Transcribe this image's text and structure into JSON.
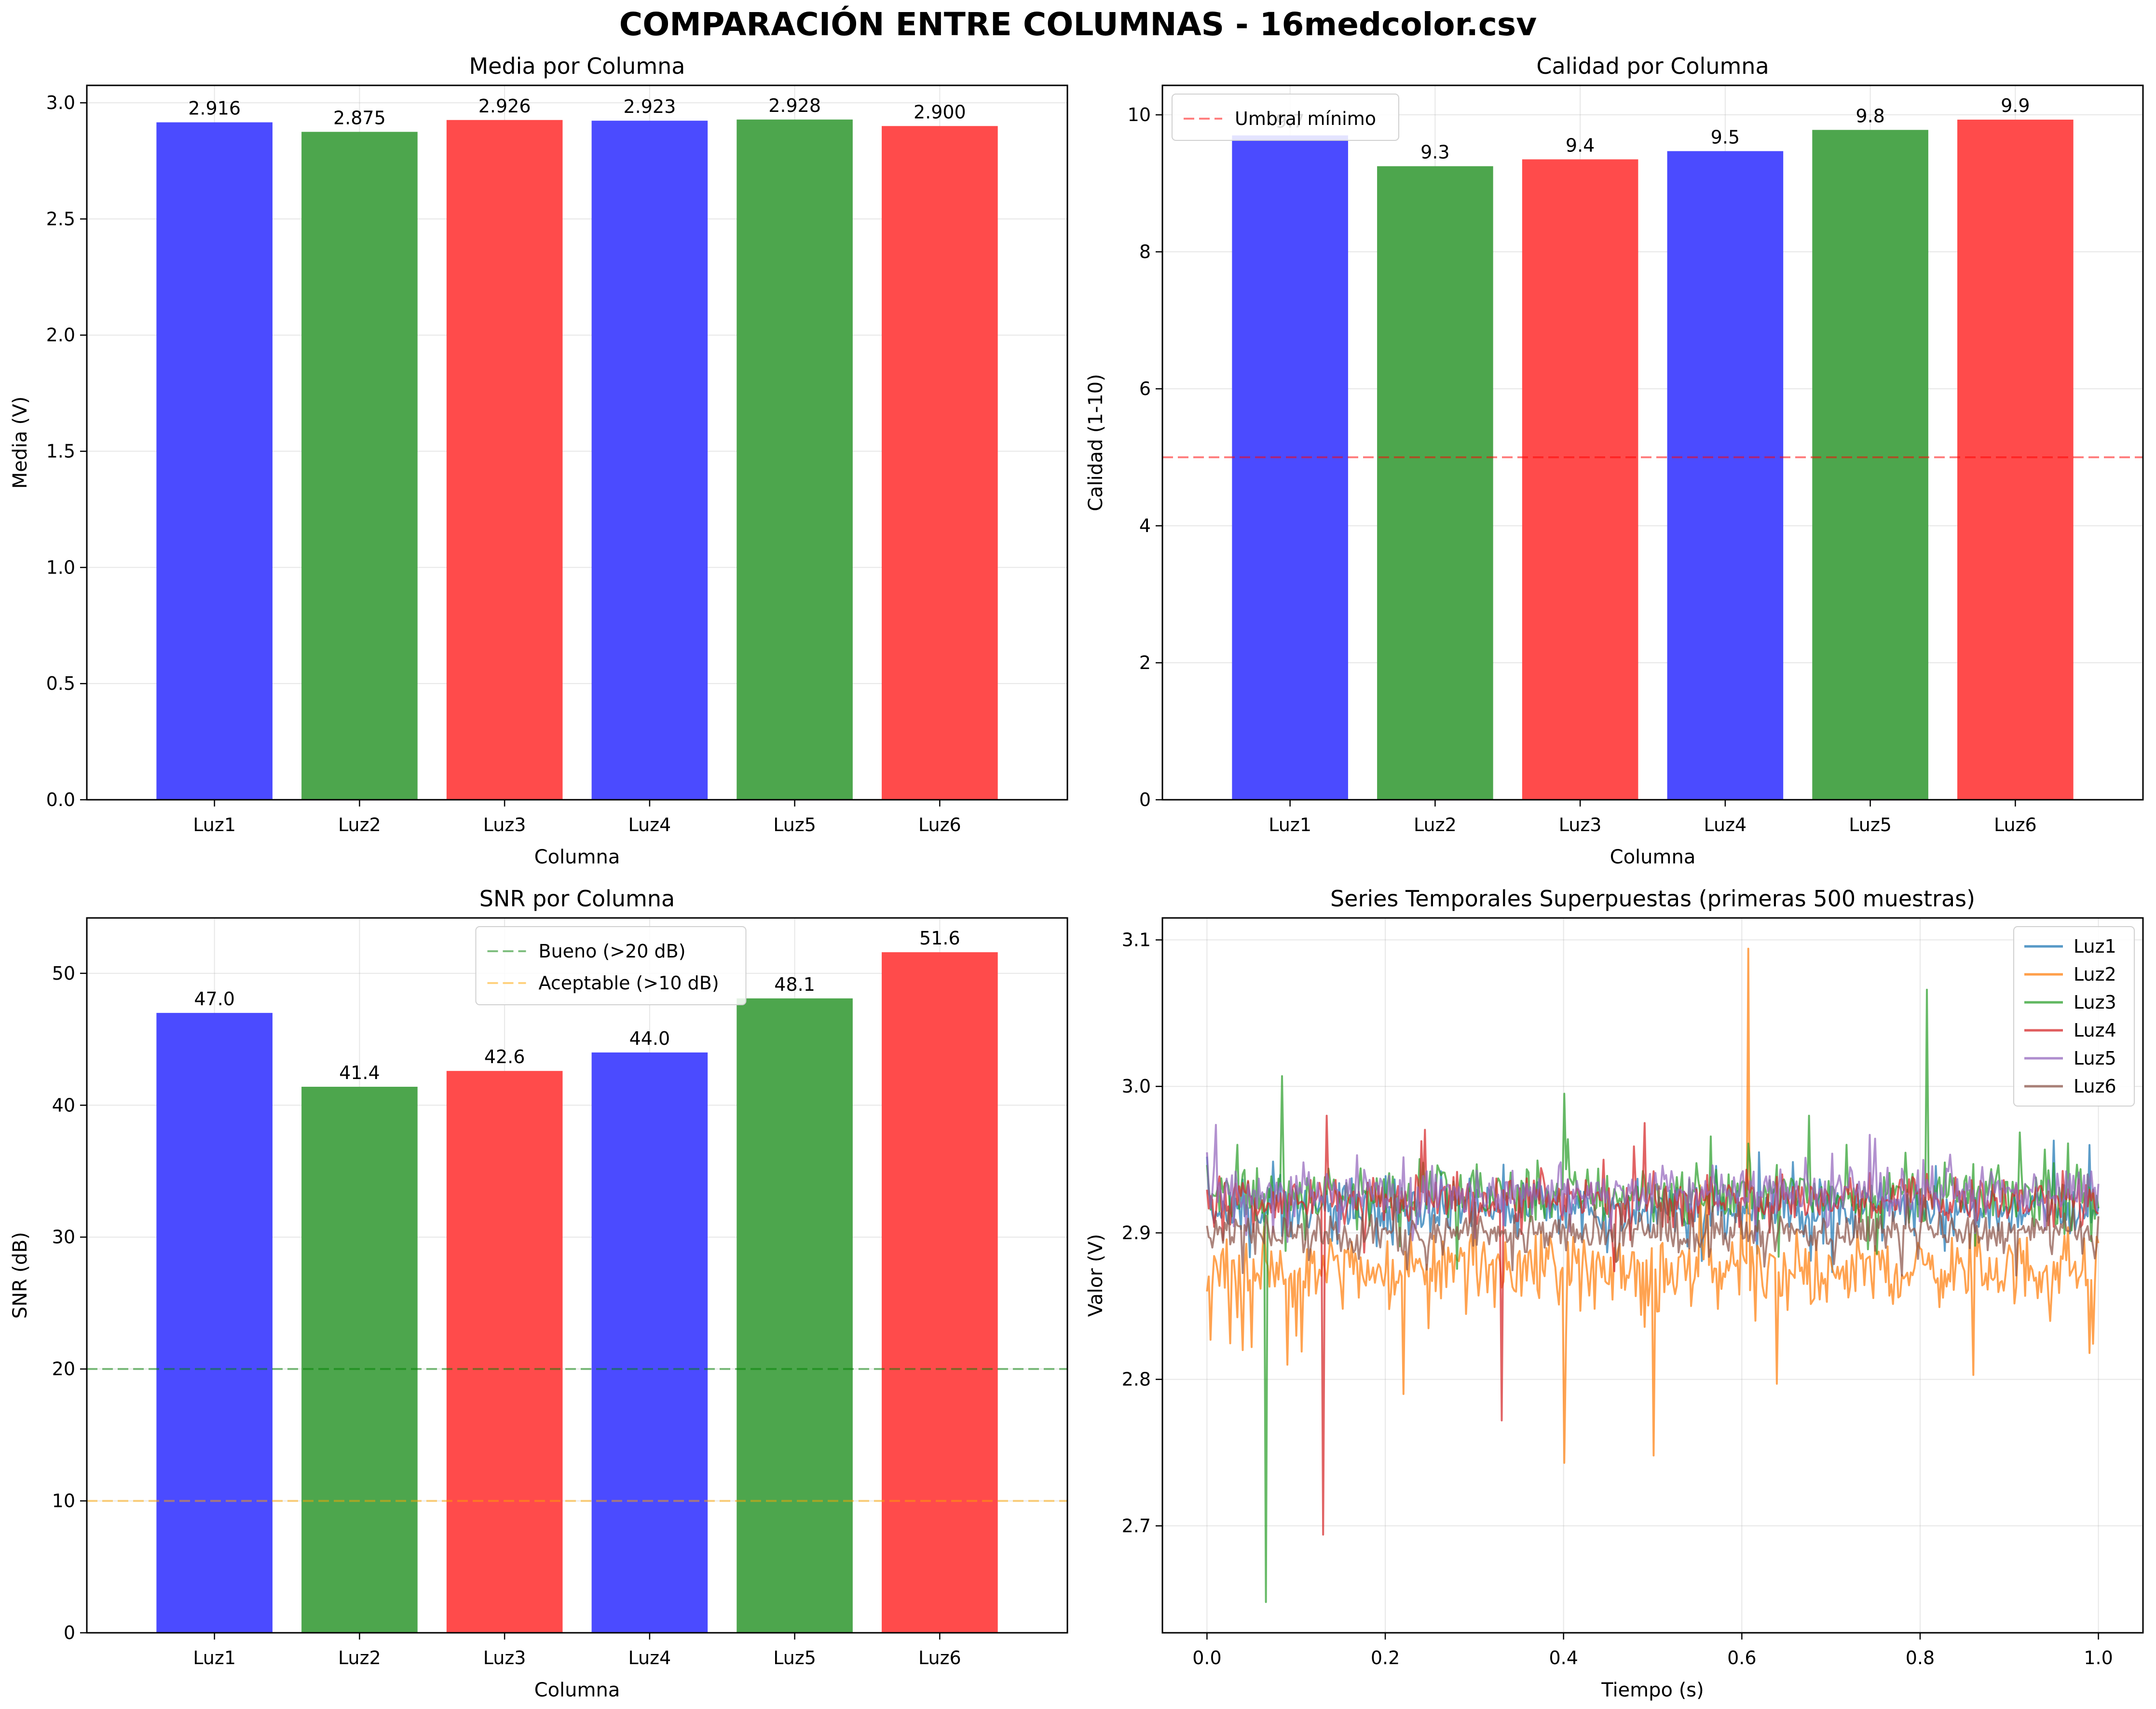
{
  "suptitle": "COMPARACIÓN ENTRE COLUMNAS - 16medcolor.csv",
  "chart_data": [
    {
      "type": "bar",
      "title": "Media por Columna",
      "xlabel": "Columna",
      "ylabel": "Media (V)",
      "categories": [
        "Luz1",
        "Luz2",
        "Luz3",
        "Luz4",
        "Luz5",
        "Luz6"
      ],
      "values": [
        2.916,
        2.875,
        2.926,
        2.923,
        2.928,
        2.9
      ],
      "value_labels": [
        "2.916",
        "2.875",
        "2.926",
        "2.923",
        "2.928",
        "2.900"
      ],
      "colors": [
        "#4b4bff",
        "#4da64d",
        "#ff4b4b",
        "#4b4bff",
        "#4da64d",
        "#ff4b4b"
      ],
      "ylim": [
        0,
        3.075
      ],
      "yticks": [
        0.0,
        0.5,
        1.0,
        1.5,
        2.0,
        2.5,
        3.0
      ],
      "ytick_labels": [
        "0.0",
        "0.5",
        "1.0",
        "1.5",
        "2.0",
        "2.5",
        "3.0"
      ],
      "grid": true
    },
    {
      "type": "bar",
      "title": "Calidad por Columna",
      "xlabel": "Columna",
      "ylabel": "Calidad (1-10)",
      "categories": [
        "Luz1",
        "Luz2",
        "Luz3",
        "Luz4",
        "Luz5",
        "Luz6"
      ],
      "values": [
        9.7,
        9.25,
        9.35,
        9.47,
        9.78,
        9.93
      ],
      "value_labels": [
        "9.7",
        "9.3",
        "9.4",
        "9.5",
        "9.8",
        "9.9"
      ],
      "colors": [
        "#4b4bff",
        "#4da64d",
        "#ff4b4b",
        "#4b4bff",
        "#4da64d",
        "#ff4b4b"
      ],
      "ylim": [
        0,
        10.43
      ],
      "yticks": [
        0,
        2,
        4,
        6,
        8,
        10
      ],
      "ytick_labels": [
        "0",
        "2",
        "4",
        "6",
        "8",
        "10"
      ],
      "hlines": [
        {
          "y": 5,
          "color": "#ff0000",
          "label": "Umbral mínimo"
        }
      ],
      "legend_position": "top-left",
      "grid": true
    },
    {
      "type": "bar",
      "title": "SNR por Columna",
      "xlabel": "Columna",
      "ylabel": "SNR (dB)",
      "categories": [
        "Luz1",
        "Luz2",
        "Luz3",
        "Luz4",
        "Luz5",
        "Luz6"
      ],
      "values": [
        47.0,
        41.4,
        42.6,
        44.0,
        48.1,
        51.6
      ],
      "value_labels": [
        "47.0",
        "41.4",
        "42.6",
        "44.0",
        "48.1",
        "51.6"
      ],
      "colors": [
        "#4b4bff",
        "#4da64d",
        "#ff4b4b",
        "#4b4bff",
        "#4da64d",
        "#ff4b4b"
      ],
      "ylim": [
        0,
        54.2
      ],
      "yticks": [
        0,
        10,
        20,
        30,
        40,
        50
      ],
      "ytick_labels": [
        "0",
        "10",
        "20",
        "30",
        "40",
        "50"
      ],
      "hlines": [
        {
          "y": 20,
          "color": "#008000",
          "label": "Bueno (>20 dB)"
        },
        {
          "y": 10,
          "color": "#ffa500",
          "label": "Aceptable (>10 dB)"
        }
      ],
      "legend_position": "top-center",
      "grid": true
    },
    {
      "type": "line",
      "title": "Series Temporales Superpuestas (primeras 500 muestras)",
      "xlabel": "Tiempo (s)",
      "ylabel": "Valor (V)",
      "xlim": [
        -0.05,
        1.05
      ],
      "ylim": [
        2.627,
        3.115
      ],
      "xticks": [
        0.0,
        0.2,
        0.4,
        0.6,
        0.8,
        1.0
      ],
      "xtick_labels": [
        "0.0",
        "0.2",
        "0.4",
        "0.6",
        "0.8",
        "1.0"
      ],
      "yticks": [
        2.7,
        2.8,
        2.9,
        3.0,
        3.1
      ],
      "ytick_labels": [
        "2.7",
        "2.8",
        "2.9",
        "3.0",
        "3.1"
      ],
      "legend_position": "top-right",
      "grid": true,
      "samples": 500,
      "series": [
        {
          "name": "Luz1",
          "color": "#1f77b4",
          "mean": 2.916,
          "noise": 0.012,
          "spikes": [
            [
              0.0,
              2.952
            ],
            [
              0.62,
              2.955
            ],
            [
              0.95,
              2.963
            ],
            [
              0.99,
              2.96
            ]
          ]
        },
        {
          "name": "Luz2",
          "color": "#ff7f0e",
          "mean": 2.875,
          "noise": 0.017,
          "spikes": [
            [
              0.0,
              2.86
            ],
            [
              0.04,
              2.82
            ],
            [
              0.09,
              2.81
            ],
            [
              0.22,
              2.79
            ],
            [
              0.4,
              2.743
            ],
            [
              0.5,
              2.748
            ],
            [
              0.608,
              3.094
            ],
            [
              0.64,
              2.797
            ],
            [
              0.86,
              2.803
            ],
            [
              0.99,
              2.818
            ]
          ]
        },
        {
          "name": "Luz3",
          "color": "#2ca02c",
          "mean": 2.926,
          "noise": 0.013,
          "spikes": [
            [
              0.066,
              2.648
            ],
            [
              0.085,
              3.007
            ],
            [
              0.4,
              2.995
            ],
            [
              0.675,
              2.98
            ],
            [
              0.808,
              3.066
            ]
          ]
        },
        {
          "name": "Luz4",
          "color": "#d62728",
          "mean": 2.923,
          "noise": 0.012,
          "spikes": [
            [
              0.131,
              2.694
            ],
            [
              0.135,
              2.98
            ],
            [
              0.33,
              2.772
            ],
            [
              0.49,
              2.975
            ]
          ]
        },
        {
          "name": "Luz5",
          "color": "#9467bd",
          "mean": 2.928,
          "noise": 0.011,
          "spikes": [
            [
              0.0,
              2.955
            ]
          ]
        },
        {
          "name": "Luz6",
          "color": "#8c564b",
          "mean": 2.9,
          "noise": 0.009,
          "spikes": []
        }
      ]
    }
  ]
}
